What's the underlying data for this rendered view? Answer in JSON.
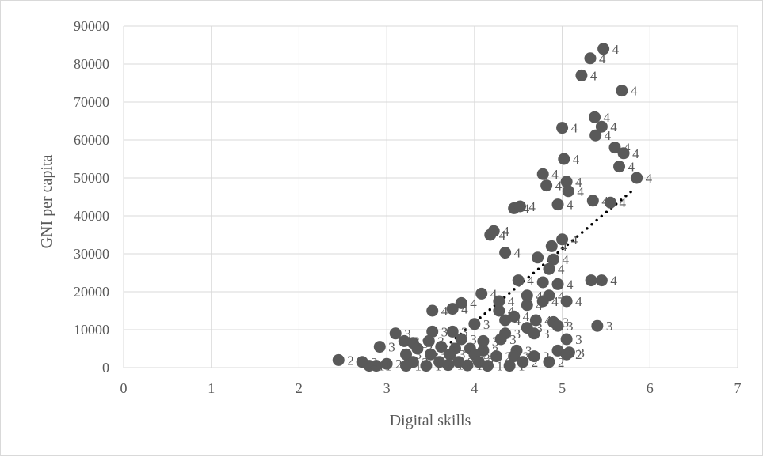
{
  "chart_data": {
    "type": "scatter",
    "xlabel": "Digital skills",
    "ylabel": "GNI per capita",
    "xlim": [
      0,
      7
    ],
    "ylim": [
      0,
      90000
    ],
    "xticks": [
      "0",
      "1",
      "2",
      "3",
      "4",
      "5",
      "6",
      "7"
    ],
    "yticks": [
      "0",
      "10000",
      "20000",
      "30000",
      "40000",
      "50000",
      "60000",
      "70000",
      "80000",
      "90000"
    ],
    "grid": true,
    "legend": "none",
    "point_color": "#595959",
    "trendline": {
      "style": "dotted",
      "color": "#000000",
      "x": [
        3.4,
        5.8
      ],
      "y": [
        300,
        46700
      ]
    },
    "series": [
      {
        "values": [
          {
            "x": 5.47,
            "y": 84000,
            "label": "4"
          },
          {
            "x": 5.32,
            "y": 81500,
            "label": "4"
          },
          {
            "x": 5.22,
            "y": 77000,
            "label": "4"
          },
          {
            "x": 5.68,
            "y": 73000,
            "label": "4"
          },
          {
            "x": 5.0,
            "y": 63200,
            "label": "4"
          },
          {
            "x": 5.37,
            "y": 66000,
            "label": "4"
          },
          {
            "x": 5.45,
            "y": 63500,
            "label": "4"
          },
          {
            "x": 5.38,
            "y": 61200,
            "label": "4"
          },
          {
            "x": 5.6,
            "y": 58000,
            "label": "4"
          },
          {
            "x": 5.7,
            "y": 56500,
            "label": "4"
          },
          {
            "x": 5.02,
            "y": 55000,
            "label": "4"
          },
          {
            "x": 5.65,
            "y": 53000,
            "label": "4"
          },
          {
            "x": 4.78,
            "y": 51000,
            "label": "4"
          },
          {
            "x": 5.05,
            "y": 49000,
            "label": "4"
          },
          {
            "x": 5.85,
            "y": 50000,
            "label": "4"
          },
          {
            "x": 4.82,
            "y": 48000,
            "label": "4"
          },
          {
            "x": 5.07,
            "y": 46500,
            "label": "4"
          },
          {
            "x": 5.35,
            "y": 44000,
            "label": "4"
          },
          {
            "x": 5.55,
            "y": 43500,
            "label": "4"
          },
          {
            "x": 4.95,
            "y": 43000,
            "label": "4"
          },
          {
            "x": 4.45,
            "y": 42000,
            "label": "4"
          },
          {
            "x": 4.52,
            "y": 42500,
            "label": "4"
          },
          {
            "x": 4.22,
            "y": 36000,
            "label": "4"
          },
          {
            "x": 4.18,
            "y": 35000,
            "label": "4"
          },
          {
            "x": 5.0,
            "y": 33800,
            "label": "4"
          },
          {
            "x": 4.88,
            "y": 32000,
            "label": "4"
          },
          {
            "x": 4.35,
            "y": 30300,
            "label": "4"
          },
          {
            "x": 4.72,
            "y": 29000,
            "label": "4"
          },
          {
            "x": 4.9,
            "y": 28500,
            "label": "4"
          },
          {
            "x": 4.85,
            "y": 26000,
            "label": "4"
          },
          {
            "x": 4.5,
            "y": 23000,
            "label": "4"
          },
          {
            "x": 4.78,
            "y": 22500,
            "label": "4"
          },
          {
            "x": 4.95,
            "y": 22000,
            "label": "4"
          },
          {
            "x": 5.33,
            "y": 23000,
            "label": "4"
          },
          {
            "x": 5.45,
            "y": 23000,
            "label": "4"
          },
          {
            "x": 4.08,
            "y": 19500,
            "label": "4"
          },
          {
            "x": 4.6,
            "y": 19000,
            "label": "4"
          },
          {
            "x": 4.85,
            "y": 19000,
            "label": "4"
          },
          {
            "x": 4.28,
            "y": 17500,
            "label": "4"
          },
          {
            "x": 4.78,
            "y": 17500,
            "label": "4"
          },
          {
            "x": 5.05,
            "y": 17500,
            "label": "4"
          },
          {
            "x": 3.85,
            "y": 17000,
            "label": "4"
          },
          {
            "x": 4.6,
            "y": 16500,
            "label": "4"
          },
          {
            "x": 3.75,
            "y": 15500,
            "label": "4"
          },
          {
            "x": 3.52,
            "y": 15000,
            "label": "4"
          },
          {
            "x": 4.28,
            "y": 15000,
            "label": "4"
          },
          {
            "x": 4.45,
            "y": 13500,
            "label": "4"
          },
          {
            "x": 4.35,
            "y": 12500,
            "label": "4"
          },
          {
            "x": 4.7,
            "y": 12500,
            "label": "4"
          },
          {
            "x": 4.9,
            "y": 12000,
            "label": "3"
          },
          {
            "x": 5.4,
            "y": 11000,
            "label": "3"
          },
          {
            "x": 4.0,
            "y": 11500,
            "label": "3"
          },
          {
            "x": 4.95,
            "y": 11000,
            "label": "3"
          },
          {
            "x": 4.6,
            "y": 10500,
            "label": "3"
          },
          {
            "x": 3.1,
            "y": 9000,
            "label": "3"
          },
          {
            "x": 3.52,
            "y": 9500,
            "label": "3"
          },
          {
            "x": 3.75,
            "y": 9500,
            "label": "3"
          },
          {
            "x": 4.35,
            "y": 9000,
            "label": "3"
          },
          {
            "x": 4.68,
            "y": 9000,
            "label": "3"
          },
          {
            "x": 3.2,
            "y": 7000,
            "label": "3"
          },
          {
            "x": 3.3,
            "y": 6500,
            "label": "3"
          },
          {
            "x": 3.48,
            "y": 7000,
            "label": "3"
          },
          {
            "x": 3.85,
            "y": 7500,
            "label": "3"
          },
          {
            "x": 4.1,
            "y": 7000,
            "label": "3"
          },
          {
            "x": 4.3,
            "y": 7500,
            "label": "3"
          },
          {
            "x": 5.05,
            "y": 7500,
            "label": "3"
          },
          {
            "x": 2.92,
            "y": 5500,
            "label": "3"
          },
          {
            "x": 3.35,
            "y": 5000,
            "label": "3"
          },
          {
            "x": 3.62,
            "y": 5500,
            "label": "3"
          },
          {
            "x": 3.78,
            "y": 5000,
            "label": "3"
          },
          {
            "x": 3.95,
            "y": 5000,
            "label": "3"
          },
          {
            "x": 4.1,
            "y": 4500,
            "label": "3"
          },
          {
            "x": 4.48,
            "y": 4500,
            "label": "3"
          },
          {
            "x": 4.95,
            "y": 4500,
            "label": "3"
          },
          {
            "x": 5.08,
            "y": 4000,
            "label": "3"
          },
          {
            "x": 3.22,
            "y": 3500,
            "label": "3"
          },
          {
            "x": 3.5,
            "y": 3500,
            "label": "3"
          },
          {
            "x": 3.72,
            "y": 3500,
            "label": "3"
          },
          {
            "x": 4.0,
            "y": 3500,
            "label": "3"
          },
          {
            "x": 4.25,
            "y": 3000,
            "label": "2"
          },
          {
            "x": 4.45,
            "y": 3000,
            "label": "2"
          },
          {
            "x": 4.68,
            "y": 3000,
            "label": "2"
          },
          {
            "x": 5.05,
            "y": 3500,
            "label": "2"
          },
          {
            "x": 2.45,
            "y": 2000,
            "label": "2"
          },
          {
            "x": 2.72,
            "y": 1500,
            "label": "2"
          },
          {
            "x": 3.0,
            "y": 1000,
            "label": "2"
          },
          {
            "x": 3.3,
            "y": 1500,
            "label": "2"
          },
          {
            "x": 3.6,
            "y": 1500,
            "label": "2"
          },
          {
            "x": 3.82,
            "y": 1500,
            "label": "2"
          },
          {
            "x": 4.05,
            "y": 1500,
            "label": "2"
          },
          {
            "x": 4.55,
            "y": 1500,
            "label": "2"
          },
          {
            "x": 4.85,
            "y": 1500,
            "label": "2"
          },
          {
            "x": 2.8,
            "y": 500,
            "label": "1"
          },
          {
            "x": 2.88,
            "y": 500,
            "label": "1"
          },
          {
            "x": 3.22,
            "y": 500,
            "label": "1"
          },
          {
            "x": 3.45,
            "y": 500,
            "label": "1"
          },
          {
            "x": 3.7,
            "y": 700,
            "label": "1"
          },
          {
            "x": 3.92,
            "y": 600,
            "label": "1"
          },
          {
            "x": 4.15,
            "y": 500,
            "label": "1"
          },
          {
            "x": 4.4,
            "y": 500,
            "label": "1"
          }
        ]
      }
    ]
  }
}
